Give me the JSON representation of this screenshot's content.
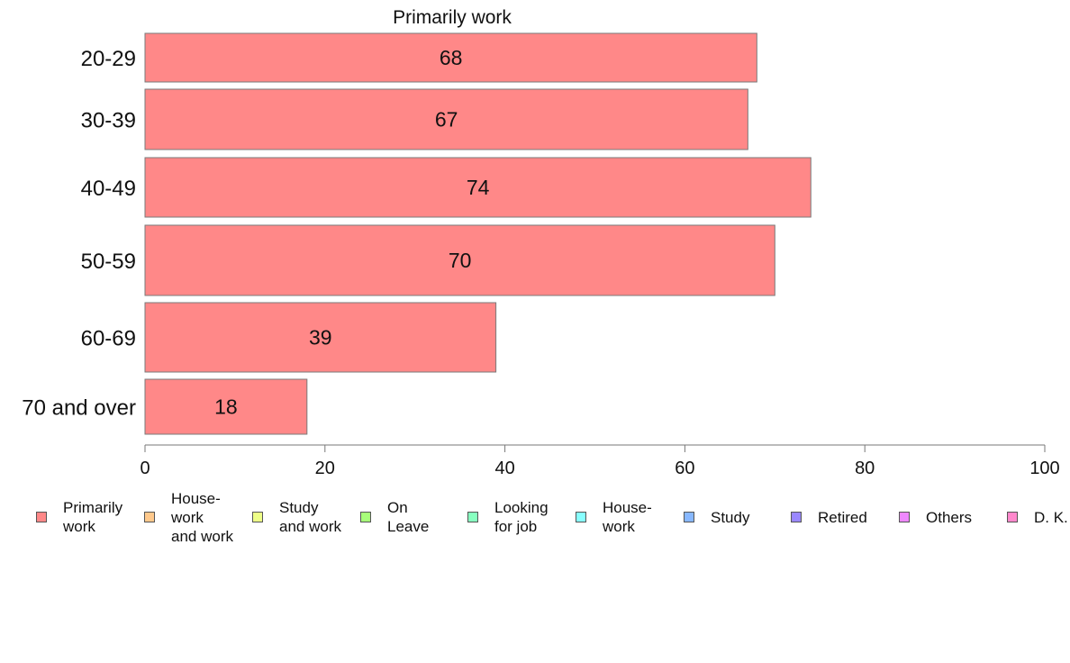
{
  "chart_data": {
    "type": "bar",
    "orientation": "horizontal",
    "title": "Primarily work",
    "categories": [
      "20-29",
      "30-39",
      "40-49",
      "50-59",
      "60-69",
      "70 and over"
    ],
    "series": [
      {
        "name": "Primarily work",
        "values": [
          68,
          67,
          74,
          70,
          39,
          18
        ],
        "color": "#ff8888"
      }
    ],
    "data_labels": [
      "68",
      "67",
      "74",
      "70",
      "39",
      "18"
    ],
    "xlim": [
      0,
      100
    ],
    "xticks": [
      0,
      20,
      40,
      60,
      80,
      100
    ],
    "xtick_labels": [
      "0",
      "20",
      "40",
      "60",
      "80",
      "100"
    ],
    "grid": false,
    "legend_position": "bottom",
    "legend": [
      {
        "label": "Primarily\nwork",
        "color": "#ff8888"
      },
      {
        "label": "House-\nwork\nand work",
        "color": "#ffc98c"
      },
      {
        "label": "Study\nand work",
        "color": "#eeff88"
      },
      {
        "label": "On\nLeave",
        "color": "#a8ff7a"
      },
      {
        "label": "Looking\nfor job",
        "color": "#88ffc0"
      },
      {
        "label": "House-\nwork",
        "color": "#88ffff"
      },
      {
        "label": "Study",
        "color": "#88b8ff"
      },
      {
        "label": "Retired",
        "color": "#9a88ff"
      },
      {
        "label": "Others",
        "color": "#ee88ff"
      },
      {
        "label": "D. K.",
        "color": "#ff88cc"
      }
    ]
  }
}
